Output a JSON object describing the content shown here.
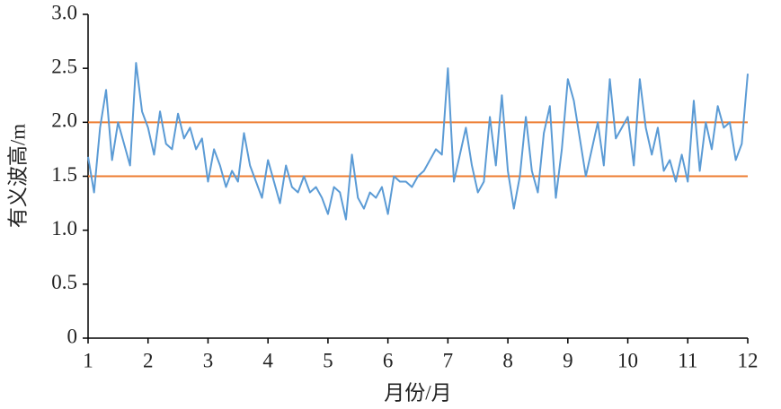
{
  "chart_data": {
    "type": "line",
    "y_label": "有义波高/m",
    "x_label": "月份/月",
    "x": [
      1.0,
      1.1,
      1.2,
      1.3,
      1.4,
      1.5,
      1.6,
      1.7,
      1.8,
      1.9,
      2.0,
      2.1,
      2.2,
      2.3,
      2.4,
      2.5,
      2.6,
      2.7,
      2.8,
      2.9,
      3.0,
      3.1,
      3.2,
      3.3,
      3.4,
      3.5,
      3.6,
      3.7,
      3.8,
      3.9,
      4.0,
      4.1,
      4.2,
      4.3,
      4.4,
      4.5,
      4.6,
      4.7,
      4.8,
      4.9,
      5.0,
      5.1,
      5.2,
      5.3,
      5.4,
      5.5,
      5.6,
      5.7,
      5.8,
      5.9,
      6.0,
      6.1,
      6.2,
      6.3,
      6.4,
      6.5,
      6.6,
      6.7,
      6.8,
      6.9,
      7.0,
      7.1,
      7.2,
      7.3,
      7.4,
      7.5,
      7.6,
      7.7,
      7.8,
      7.9,
      8.0,
      8.1,
      8.2,
      8.3,
      8.4,
      8.5,
      8.6,
      8.7,
      8.8,
      8.9,
      9.0,
      9.1,
      9.2,
      9.3,
      9.4,
      9.5,
      9.6,
      9.7,
      9.8,
      9.9,
      10.0,
      10.1,
      10.2,
      10.3,
      10.4,
      10.5,
      10.6,
      10.7,
      10.8,
      10.9,
      11.0,
      11.1,
      11.2,
      11.3,
      11.4,
      11.5,
      11.6,
      11.7,
      11.8,
      11.9,
      12.0
    ],
    "series": [
      {
        "color": "#5b9bd5",
        "values": [
          1.68,
          1.35,
          1.95,
          2.3,
          1.65,
          2.0,
          1.8,
          1.6,
          2.55,
          2.1,
          1.95,
          1.7,
          2.1,
          1.8,
          1.75,
          2.08,
          1.85,
          1.95,
          1.75,
          1.85,
          1.45,
          1.75,
          1.6,
          1.4,
          1.55,
          1.45,
          1.9,
          1.6,
          1.45,
          1.3,
          1.65,
          1.45,
          1.25,
          1.6,
          1.4,
          1.35,
          1.5,
          1.35,
          1.4,
          1.3,
          1.15,
          1.4,
          1.35,
          1.1,
          1.7,
          1.3,
          1.2,
          1.35,
          1.3,
          1.4,
          1.15,
          1.5,
          1.45,
          1.45,
          1.4,
          1.5,
          1.55,
          1.65,
          1.75,
          1.7,
          2.5,
          1.45,
          1.7,
          1.95,
          1.6,
          1.35,
          1.45,
          2.05,
          1.6,
          2.25,
          1.55,
          1.2,
          1.5,
          2.05,
          1.55,
          1.35,
          1.9,
          2.15,
          1.3,
          1.75,
          2.4,
          2.2,
          1.85,
          1.5,
          1.75,
          2.0,
          1.6,
          2.4,
          1.85,
          1.95,
          2.05,
          1.6,
          2.4,
          1.95,
          1.7,
          1.95,
          1.55,
          1.65,
          1.45,
          1.7,
          1.45,
          2.2,
          1.55,
          2.0,
          1.75,
          2.15,
          1.95,
          2.0,
          1.65,
          1.8,
          2.45
        ]
      }
    ],
    "reference_lines": [
      {
        "y": 2.0,
        "color": "#ed7d31"
      },
      {
        "y": 1.5,
        "color": "#ed7d31"
      }
    ],
    "xlim": [
      1,
      12
    ],
    "xticks": [
      1,
      2,
      3,
      4,
      5,
      6,
      7,
      8,
      9,
      10,
      11,
      12
    ],
    "ylim": [
      0,
      3
    ],
    "yticks": [
      0,
      0.5,
      {
        "value": 1,
        "label": "1.0"
      },
      1.5,
      {
        "value": 2,
        "label": "2.0"
      },
      2.5,
      {
        "value": 3,
        "label": "3.0"
      }
    ]
  }
}
